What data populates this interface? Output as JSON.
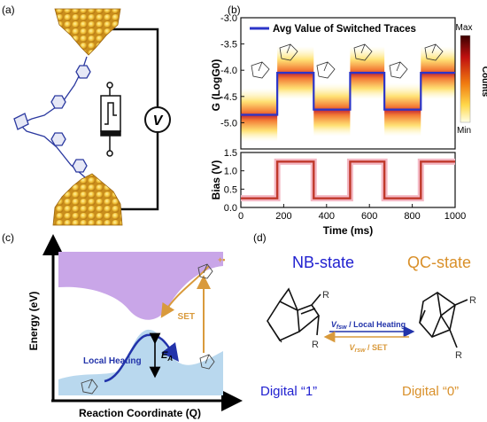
{
  "panel_labels": {
    "a": "(a)",
    "b": "(b)",
    "c": "(c)",
    "d": "(d)"
  },
  "panel_a": {
    "meter_symbol": "V"
  },
  "panel_b": {
    "legend_label": "Avg Value of Switched Traces",
    "colorbar": {
      "max": "Max",
      "min": "Min",
      "title": "Counts"
    },
    "colors": {
      "avg_line": "#2b35c8",
      "bias_line": "#c0392b",
      "bias_glow": "#f4b8c4"
    },
    "chart_data": [
      {
        "type": "line",
        "title": "",
        "xlabel": "Time (ms)",
        "ylabel": "G (LogG0)",
        "ylim": [
          -5.5,
          -3.0
        ],
        "yticks": [
          "-3.0",
          "-3.5",
          "-4.0",
          "-4.5",
          "-5.0"
        ],
        "xlim": [
          0,
          1000
        ],
        "grid": false,
        "series": [
          {
            "name": "Avg Value of Switched Traces",
            "x": [
              0,
              170,
              170,
              340,
              340,
              510,
              510,
              670,
              670,
              840,
              840,
              1000
            ],
            "values": [
              -4.85,
              -4.85,
              -4.05,
              -4.05,
              -4.75,
              -4.75,
              -4.05,
              -4.05,
              -4.75,
              -4.75,
              -4.05,
              -4.05
            ]
          }
        ]
      },
      {
        "type": "line",
        "title": "",
        "xlabel": "Time (ms)",
        "ylabel": "Bias (V)",
        "ylim": [
          0,
          1.5
        ],
        "yticks": [
          "0.0",
          "0.5",
          "1.0",
          "1.5"
        ],
        "xticks": [
          "0",
          "200",
          "400",
          "600",
          "800",
          "1000"
        ],
        "xlim": [
          0,
          1000
        ],
        "grid": false,
        "series": [
          {
            "name": "",
            "x": [
              0,
              170,
              170,
              340,
              340,
              510,
              510,
              670,
              670,
              840,
              840,
              1000
            ],
            "values": [
              0.25,
              0.25,
              1.25,
              1.25,
              0.25,
              0.25,
              1.25,
              1.25,
              0.25,
              0.25,
              1.25,
              1.25
            ]
          }
        ]
      }
    ]
  },
  "panel_c": {
    "y_axis_label": "Energy (eV)",
    "x_axis_label": "Reaction Coordinate (Q)",
    "local_heating": "Local Heating",
    "ea_main": "E",
    "ea_sub": "A",
    "set": "SET",
    "charge": "+•",
    "colors": {
      "upper_surface": "#c9a6e8",
      "lower_surface": "#b9d8ee",
      "heating_arrow": "#2233aa",
      "set_arrow": "#d99a3c"
    }
  },
  "panel_d": {
    "nb_title": "NB-state",
    "qc_title": "QC-state",
    "digital_1": "Digital “1”",
    "digital_0": "Digital “0”",
    "arrow_top_v": "V",
    "arrow_top_sub": "fsw",
    "arrow_top_rest": " / Local Heating",
    "arrow_bottom_v": "V",
    "arrow_bottom_sub": "rsw",
    "arrow_bottom_rest": " / SET",
    "substituent": "R",
    "colors": {
      "nb": "#2020d0",
      "qc": "#d9902a"
    }
  }
}
